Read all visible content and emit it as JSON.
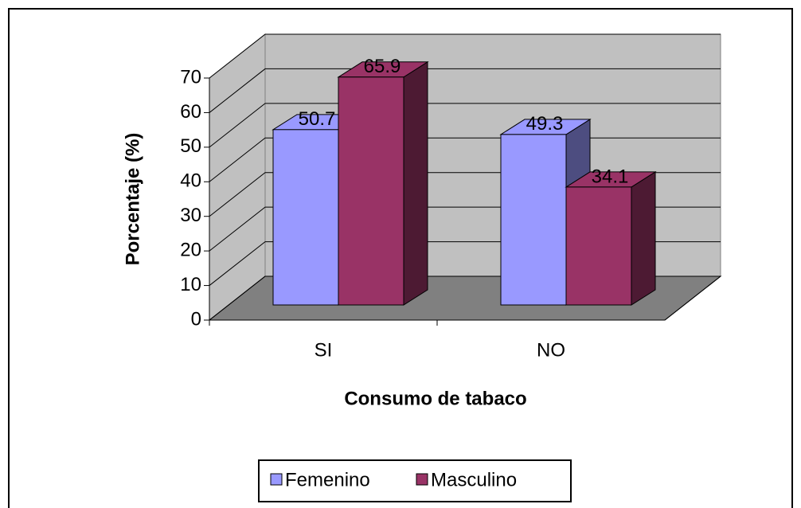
{
  "chart_data": {
    "type": "bar3d",
    "categories": [
      "SI",
      "NO"
    ],
    "series": [
      {
        "name": "Femenino",
        "color": "#9999ff",
        "values": [
          50.7,
          49.3
        ]
      },
      {
        "name": "Masculino",
        "color": "#993366",
        "values": [
          65.9,
          34.1
        ]
      }
    ],
    "x_label": "Consumo de tabaco",
    "y_label": "Porcentaje (%)",
    "ylim": [
      0,
      70
    ],
    "yticks": [
      0,
      10,
      20,
      30,
      40,
      50,
      60,
      70
    ],
    "grid": true
  }
}
